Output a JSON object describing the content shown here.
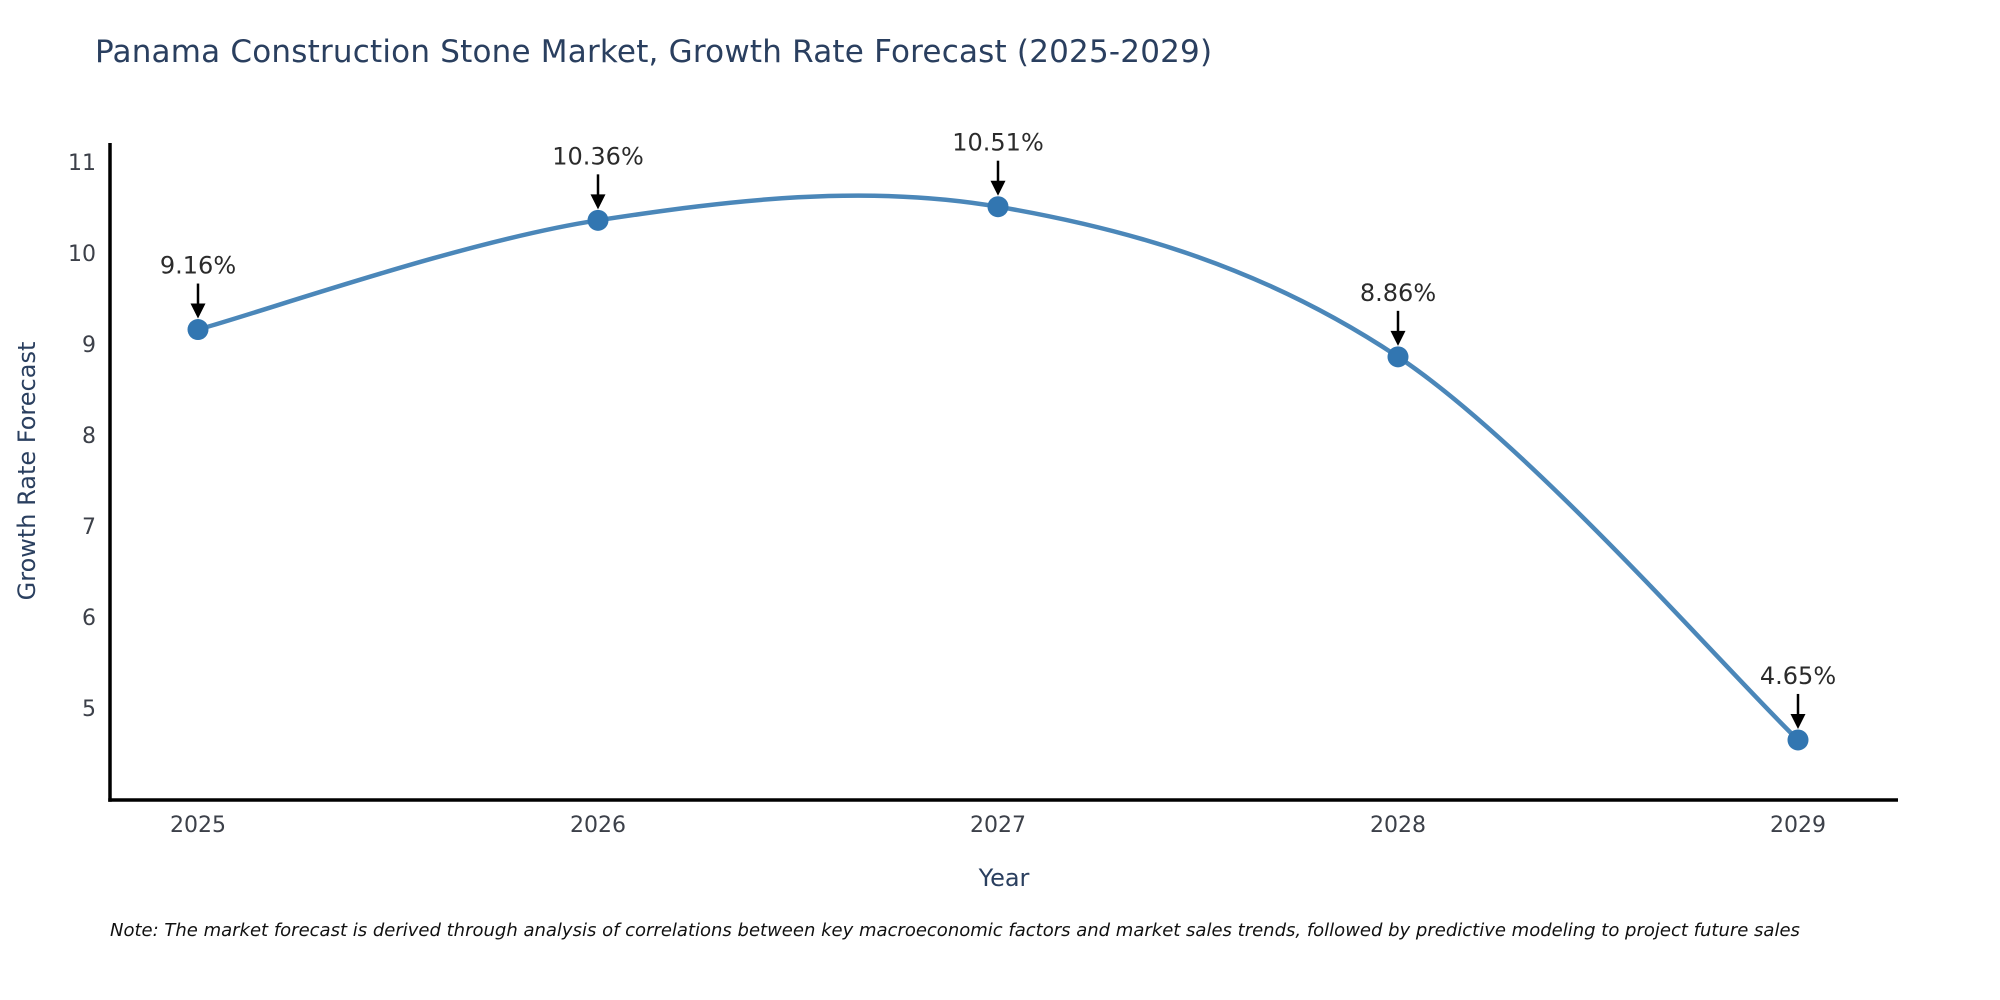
{
  "chart_data": {
    "type": "line",
    "line_shape": "spline",
    "title": "Panama Construction Stone Market, Growth Rate Forecast (2025-2029)",
    "xlabel": "Year",
    "ylabel": "Growth Rate Forecast",
    "categories": [
      "2025",
      "2026",
      "2027",
      "2028",
      "2029"
    ],
    "series": [
      {
        "name": "Growth Rate Forecast",
        "values": [
          9.16,
          10.36,
          10.51,
          8.86,
          4.65
        ]
      }
    ],
    "point_labels": [
      "9.16%",
      "10.36%",
      "10.51%",
      "8.86%",
      "4.65%"
    ],
    "yticks": [
      5,
      6,
      7,
      8,
      9,
      10,
      11
    ],
    "ylim": [
      3.99,
      11.21
    ],
    "grid": false,
    "legend_position": "none",
    "colors": {
      "line": "#4b87b9",
      "marker": "#3276b1",
      "axis": "#000000",
      "arrow": "#000000",
      "title_text": "#2a3f5f",
      "axis_title_text": "#2a3f5f",
      "tick_text": "#3c4049",
      "annotation_text": "#2b2b2b"
    }
  },
  "note": {
    "text": "Note: The market forecast is derived through analysis of correlations between key macroeconomic factors and market sales trends, followed by predictive modeling to project future sales"
  }
}
